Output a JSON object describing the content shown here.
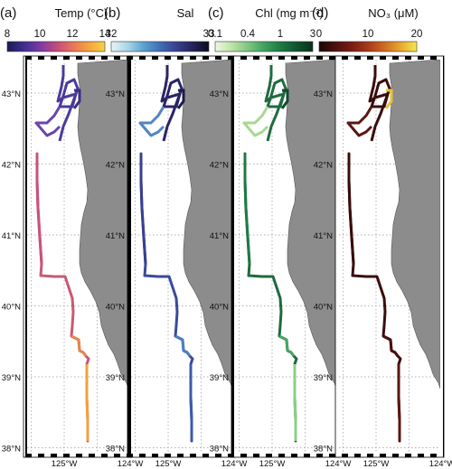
{
  "panels": [
    {
      "letter": "(a)",
      "title": "Temp (°C)",
      "ticks": [
        "8",
        "10",
        "12",
        "14"
      ],
      "colors": [
        "#1b1b52",
        "#3d2f8f",
        "#7a3aa3",
        "#c04a80",
        "#e8745a",
        "#f5a33c",
        "#f7d24a"
      ],
      "track": {
        "north": [
          "#4b3a9c",
          "#6a44a8",
          "#3a2e86"
        ],
        "south": [
          "#c9527a",
          "#e6864e",
          "#f2a13e"
        ],
        "line": "#c85a74"
      }
    },
    {
      "letter": "(b)",
      "title": "Sal",
      "ticks": [
        "32",
        "33"
      ],
      "colors": [
        "#e6f4f7",
        "#a9d6e6",
        "#5aa2cf",
        "#3f6fb5",
        "#39408f",
        "#26225c",
        "#0d0b1f"
      ],
      "track": {
        "north": [
          "#2a2466",
          "#4f86c4",
          "#1e1a4e"
        ],
        "south": [
          "#3a3f8e",
          "#4d7fc0",
          "#3e5aa8"
        ],
        "line": "#3a4a9a"
      }
    },
    {
      "letter": "(c)",
      "title": "Chl (mg m⁻³)",
      "ticks": [
        "0.1",
        "0.4",
        "1",
        "3"
      ],
      "colors": [
        "#eef8e6",
        "#bfe3a6",
        "#7fc784",
        "#3fa35f",
        "#1f7a45",
        "#0f5430",
        "#07321c"
      ],
      "track": {
        "north": [
          "#1f6b3f",
          "#a8d892",
          "#0f4a2c"
        ],
        "south": [
          "#1f7a45",
          "#4aa462",
          "#8ccf86"
        ],
        "line": "#1e6a3e"
      }
    },
    {
      "letter": "(d)",
      "title": "NO₃ (μM)",
      "ticks": [
        "0",
        "10",
        "20"
      ],
      "colors": [
        "#1a0707",
        "#4a1010",
        "#7a1c14",
        "#a8391a",
        "#cf6a22",
        "#e8a631",
        "#f4e94e"
      ],
      "track": {
        "north": [
          "#3a0c0c",
          "#5a1612",
          "#e8c23a"
        ],
        "south": [
          "#3a0c0c",
          "#4a1010",
          "#5a1612"
        ],
        "line": "#3c0d0d"
      }
    }
  ],
  "lat_labels": [
    "43°N",
    "42°N",
    "41°N",
    "40°N",
    "39°N",
    "38°N"
  ],
  "lon_labels": [
    "125°W",
    "124°W"
  ]
}
